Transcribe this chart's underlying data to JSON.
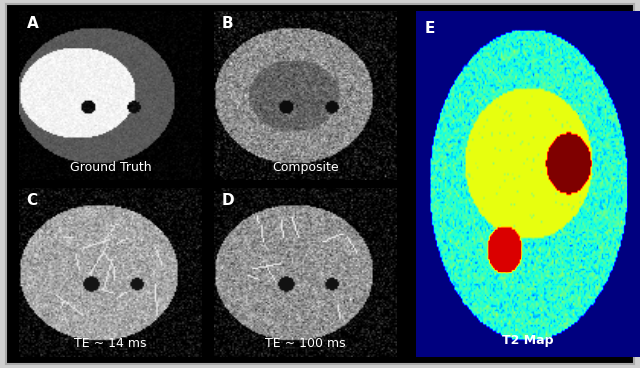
{
  "figure_title": "",
  "panels": [
    "A",
    "B",
    "C",
    "D",
    "E"
  ],
  "panel_labels": {
    "A": "A",
    "B": "B",
    "C": "C",
    "D": "D",
    "E": "E"
  },
  "captions": {
    "A": "Ground Truth",
    "B": "Composite",
    "C": "TE ~ 14 ms",
    "D": "TE ~ 100 ms",
    "E": "T2 Map"
  },
  "background_color": "#000000",
  "outer_bg": "#d0d0d0",
  "label_color": "#ffffff",
  "caption_color": "#ffffff",
  "border_color": "#aaaaaa",
  "label_fontsize": 11,
  "caption_fontsize": 9,
  "fig_width": 6.4,
  "fig_height": 3.68
}
